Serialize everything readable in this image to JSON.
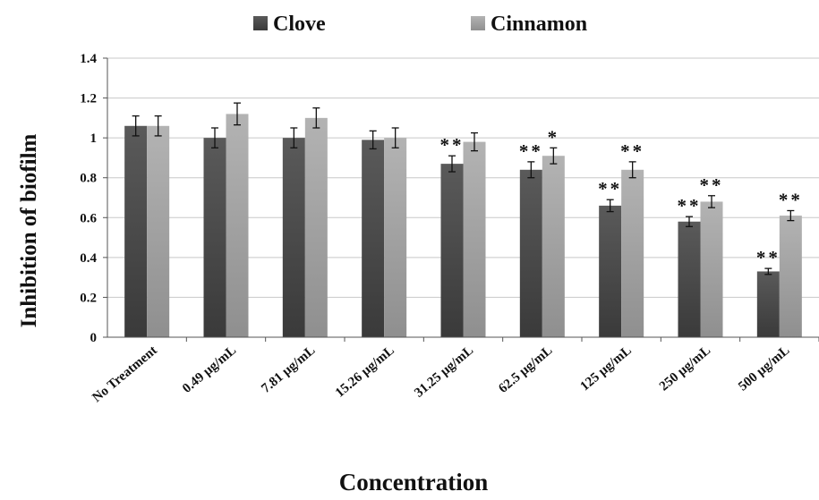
{
  "chart_data": {
    "type": "bar",
    "title": "",
    "xlabel": "Concentration",
    "ylabel": "Inhibition of biofilm",
    "ylim": [
      0,
      1.4
    ],
    "yticks": [
      "0",
      "0.2",
      "0.4",
      "0.6",
      "0.8",
      "1",
      "1.2",
      "1.4"
    ],
    "grid": true,
    "legend_position": "top-center",
    "categories": [
      "No Treatment",
      "0.49 µg/mL",
      "7.81 µg/mL",
      "15.26 µg/mL",
      "31.25 µg/mL",
      "62.5 µg/mL",
      "125 µg/mL",
      "250 µg/mL",
      "500 µg/mL"
    ],
    "series": [
      {
        "name": "Clove",
        "color": "#4d4d4d",
        "values": [
          1.06,
          1.0,
          1.0,
          0.99,
          0.87,
          0.84,
          0.66,
          0.58,
          0.33
        ],
        "errors": [
          0.05,
          0.05,
          0.05,
          0.045,
          0.04,
          0.04,
          0.03,
          0.025,
          0.015
        ],
        "significance": [
          "",
          "",
          "",
          "",
          "**",
          "**",
          "**",
          "**",
          "**"
        ]
      },
      {
        "name": "Cinnamon",
        "color": "#a6a6a6",
        "values": [
          1.06,
          1.12,
          1.1,
          1.0,
          0.98,
          0.91,
          0.84,
          0.68,
          0.61
        ],
        "errors": [
          0.05,
          0.055,
          0.05,
          0.05,
          0.045,
          0.04,
          0.04,
          0.03,
          0.025
        ],
        "significance": [
          "",
          "",
          "",
          "",
          "",
          "*",
          "**",
          "**",
          "**"
        ]
      }
    ]
  }
}
